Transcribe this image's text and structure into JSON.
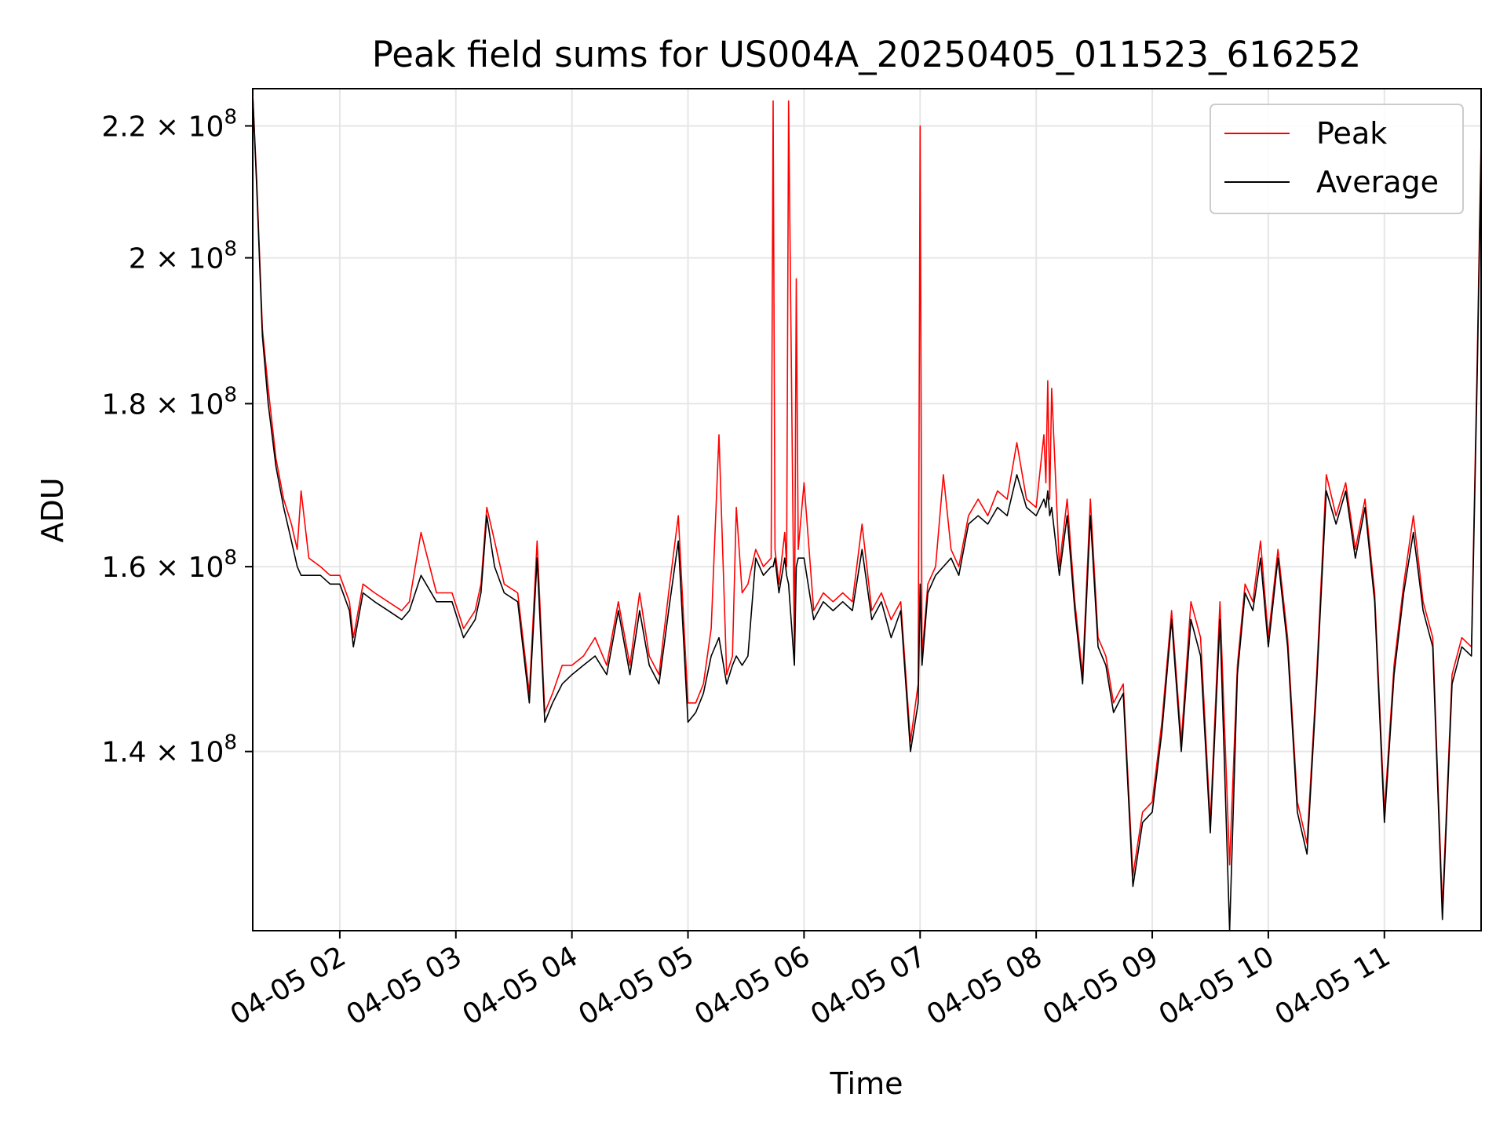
{
  "chart_data": {
    "type": "line",
    "title": "Peak field sums for US004A_20250405_011523_616252",
    "xlabel": "Time",
    "ylabel": "ADU",
    "x_range": [
      "2025-04-05 01:15",
      "2025-04-05 11:50"
    ],
    "y_range": [
      123000000,
      226000000
    ],
    "y_scale": "log",
    "grid": true,
    "legend_position": "top-right",
    "x_ticks": [
      {
        "value": "2025-04-05 02:00",
        "label": "04-05 02"
      },
      {
        "value": "2025-04-05 03:00",
        "label": "04-05 03"
      },
      {
        "value": "2025-04-05 04:00",
        "label": "04-05 04"
      },
      {
        "value": "2025-04-05 05:00",
        "label": "04-05 05"
      },
      {
        "value": "2025-04-05 06:00",
        "label": "04-05 06"
      },
      {
        "value": "2025-04-05 07:00",
        "label": "04-05 07"
      },
      {
        "value": "2025-04-05 08:00",
        "label": "04-05 08"
      },
      {
        "value": "2025-04-05 09:00",
        "label": "04-05 09"
      },
      {
        "value": "2025-04-05 10:00",
        "label": "04-05 10"
      },
      {
        "value": "2025-04-05 11:00",
        "label": "04-05 11"
      }
    ],
    "y_ticks": [
      {
        "value": 140000000,
        "mantissa": "1.4",
        "exponent": "8"
      },
      {
        "value": 160000000,
        "mantissa": "1.6",
        "exponent": "8"
      },
      {
        "value": 180000000,
        "mantissa": "1.8",
        "exponent": "8"
      },
      {
        "value": 200000000,
        "mantissa": "2",
        "exponent": "8"
      },
      {
        "value": 220000000,
        "mantissa": "2.2",
        "exponent": "8"
      }
    ],
    "series": [
      {
        "name": "Peak",
        "color": "#ff0000",
        "x": [
          "2025-04-05 01:15",
          "2025-04-05 01:17",
          "2025-04-05 01:20",
          "2025-04-05 01:23",
          "2025-04-05 01:27",
          "2025-04-05 01:31",
          "2025-04-05 01:35",
          "2025-04-05 01:38",
          "2025-04-05 01:40",
          "2025-04-05 01:44",
          "2025-04-05 01:50",
          "2025-04-05 01:55",
          "2025-04-05 02:00",
          "2025-04-05 02:05",
          "2025-04-05 02:07",
          "2025-04-05 02:12",
          "2025-04-05 02:18",
          "2025-04-05 02:25",
          "2025-04-05 02:32",
          "2025-04-05 02:36",
          "2025-04-05 02:42",
          "2025-04-05 02:50",
          "2025-04-05 02:58",
          "2025-04-05 03:04",
          "2025-04-05 03:10",
          "2025-04-05 03:13",
          "2025-04-05 03:16",
          "2025-04-05 03:20",
          "2025-04-05 03:25",
          "2025-04-05 03:32",
          "2025-04-05 03:38",
          "2025-04-05 03:42",
          "2025-04-05 03:46",
          "2025-04-05 03:50",
          "2025-04-05 03:55",
          "2025-04-05 04:00",
          "2025-04-05 04:06",
          "2025-04-05 04:12",
          "2025-04-05 04:18",
          "2025-04-05 04:24",
          "2025-04-05 04:30",
          "2025-04-05 04:35",
          "2025-04-05 04:40",
          "2025-04-05 04:45",
          "2025-04-05 04:50",
          "2025-04-05 04:55",
          "2025-04-05 05:00",
          "2025-04-05 05:04",
          "2025-04-05 05:08",
          "2025-04-05 05:12",
          "2025-04-05 05:16",
          "2025-04-05 05:20",
          "2025-04-05 05:23",
          "2025-04-05 05:25",
          "2025-04-05 05:28",
          "2025-04-05 05:31",
          "2025-04-05 05:35",
          "2025-04-05 05:39",
          "2025-04-05 05:43",
          "2025-04-05 05:44",
          "2025-04-05 05:45",
          "2025-04-05 05:47",
          "2025-04-05 05:50",
          "2025-04-05 05:51",
          "2025-04-05 05:52",
          "2025-04-05 05:55",
          "2025-04-05 05:56",
          "2025-04-05 05:57",
          "2025-04-05 06:00",
          "2025-04-05 06:05",
          "2025-04-05 06:10",
          "2025-04-05 06:15",
          "2025-04-05 06:20",
          "2025-04-05 06:25",
          "2025-04-05 06:30",
          "2025-04-05 06:35",
          "2025-04-05 06:40",
          "2025-04-05 06:45",
          "2025-04-05 06:50",
          "2025-04-05 06:55",
          "2025-04-05 06:59",
          "2025-04-05 07:00",
          "2025-04-05 07:01",
          "2025-04-05 07:04",
          "2025-04-05 07:08",
          "2025-04-05 07:12",
          "2025-04-05 07:16",
          "2025-04-05 07:20",
          "2025-04-05 07:25",
          "2025-04-05 07:30",
          "2025-04-05 07:35",
          "2025-04-05 07:40",
          "2025-04-05 07:45",
          "2025-04-05 07:50",
          "2025-04-05 07:55",
          "2025-04-05 08:00",
          "2025-04-05 08:04",
          "2025-04-05 08:05",
          "2025-04-05 08:06",
          "2025-04-05 08:07",
          "2025-04-05 08:08",
          "2025-04-05 08:12",
          "2025-04-05 08:16",
          "2025-04-05 08:20",
          "2025-04-05 08:24",
          "2025-04-05 08:28",
          "2025-04-05 08:32",
          "2025-04-05 08:36",
          "2025-04-05 08:40",
          "2025-04-05 08:45",
          "2025-04-05 08:50",
          "2025-04-05 08:55",
          "2025-04-05 09:00",
          "2025-04-05 09:05",
          "2025-04-05 09:10",
          "2025-04-05 09:15",
          "2025-04-05 09:20",
          "2025-04-05 09:25",
          "2025-04-05 09:30",
          "2025-04-05 09:35",
          "2025-04-05 09:40",
          "2025-04-05 09:44",
          "2025-04-05 09:48",
          "2025-04-05 09:52",
          "2025-04-05 09:56",
          "2025-04-05 10:00",
          "2025-04-05 10:05",
          "2025-04-05 10:10",
          "2025-04-05 10:15",
          "2025-04-05 10:20",
          "2025-04-05 10:25",
          "2025-04-05 10:30",
          "2025-04-05 10:35",
          "2025-04-05 10:40",
          "2025-04-05 10:45",
          "2025-04-05 10:50",
          "2025-04-05 10:55",
          "2025-04-05 11:00",
          "2025-04-05 11:05",
          "2025-04-05 11:10",
          "2025-04-05 11:15",
          "2025-04-05 11:20",
          "2025-04-05 11:25",
          "2025-04-05 11:30",
          "2025-04-05 11:35",
          "2025-04-05 11:40",
          "2025-04-05 11:45",
          "2025-04-05 11:48",
          "2025-04-05 11:50"
        ],
        "values": [
          225000000,
          212000000,
          190000000,
          182000000,
          173000000,
          168000000,
          165000000,
          162000000,
          169000000,
          161000000,
          160000000,
          159000000,
          159000000,
          156000000,
          152000000,
          158000000,
          157000000,
          156000000,
          155000000,
          156000000,
          164000000,
          157000000,
          157000000,
          153000000,
          155000000,
          158000000,
          167000000,
          163000000,
          158000000,
          157000000,
          146000000,
          163000000,
          144000000,
          146000000,
          149000000,
          149000000,
          150000000,
          152000000,
          149000000,
          156000000,
          149000000,
          157000000,
          150000000,
          148000000,
          157000000,
          166000000,
          145000000,
          145000000,
          147000000,
          153000000,
          176000000,
          148000000,
          150000000,
          167000000,
          157000000,
          158000000,
          162000000,
          160000000,
          161000000,
          224000000,
          162000000,
          158000000,
          164000000,
          160000000,
          224000000,
          150000000,
          197000000,
          162000000,
          170000000,
          155000000,
          157000000,
          156000000,
          157000000,
          156000000,
          165000000,
          155000000,
          157000000,
          154000000,
          156000000,
          141000000,
          147000000,
          220000000,
          150000000,
          158000000,
          160000000,
          171000000,
          162000000,
          160000000,
          166000000,
          168000000,
          166000000,
          169000000,
          168000000,
          175000000,
          168000000,
          167000000,
          176000000,
          170000000,
          183000000,
          168000000,
          182000000,
          160000000,
          168000000,
          156000000,
          148000000,
          168000000,
          152000000,
          150000000,
          145000000,
          147000000,
          128000000,
          134000000,
          135000000,
          143000000,
          155000000,
          141000000,
          156000000,
          152000000,
          133000000,
          156000000,
          129000000,
          149000000,
          158000000,
          156000000,
          163000000,
          152000000,
          162000000,
          152000000,
          135000000,
          131000000,
          148000000,
          171000000,
          166000000,
          170000000,
          162000000,
          168000000,
          157000000,
          134000000,
          149000000,
          158000000,
          166000000,
          156000000,
          152000000,
          125000000,
          148000000,
          152000000,
          151000000,
          186000000,
          218000000
        ]
      },
      {
        "name": "Average",
        "color": "#000000",
        "x": [
          "2025-04-05 01:15",
          "2025-04-05 01:17",
          "2025-04-05 01:20",
          "2025-04-05 01:23",
          "2025-04-05 01:27",
          "2025-04-05 01:31",
          "2025-04-05 01:35",
          "2025-04-05 01:38",
          "2025-04-05 01:40",
          "2025-04-05 01:44",
          "2025-04-05 01:50",
          "2025-04-05 01:55",
          "2025-04-05 02:00",
          "2025-04-05 02:05",
          "2025-04-05 02:07",
          "2025-04-05 02:12",
          "2025-04-05 02:18",
          "2025-04-05 02:25",
          "2025-04-05 02:32",
          "2025-04-05 02:36",
          "2025-04-05 02:42",
          "2025-04-05 02:50",
          "2025-04-05 02:58",
          "2025-04-05 03:04",
          "2025-04-05 03:10",
          "2025-04-05 03:13",
          "2025-04-05 03:16",
          "2025-04-05 03:20",
          "2025-04-05 03:25",
          "2025-04-05 03:32",
          "2025-04-05 03:38",
          "2025-04-05 03:42",
          "2025-04-05 03:46",
          "2025-04-05 03:50",
          "2025-04-05 03:55",
          "2025-04-05 04:00",
          "2025-04-05 04:06",
          "2025-04-05 04:12",
          "2025-04-05 04:18",
          "2025-04-05 04:24",
          "2025-04-05 04:30",
          "2025-04-05 04:35",
          "2025-04-05 04:40",
          "2025-04-05 04:45",
          "2025-04-05 04:50",
          "2025-04-05 04:55",
          "2025-04-05 05:00",
          "2025-04-05 05:04",
          "2025-04-05 05:08",
          "2025-04-05 05:12",
          "2025-04-05 05:16",
          "2025-04-05 05:20",
          "2025-04-05 05:23",
          "2025-04-05 05:25",
          "2025-04-05 05:28",
          "2025-04-05 05:31",
          "2025-04-05 05:35",
          "2025-04-05 05:39",
          "2025-04-05 05:43",
          "2025-04-05 05:44",
          "2025-04-05 05:45",
          "2025-04-05 05:47",
          "2025-04-05 05:50",
          "2025-04-05 05:51",
          "2025-04-05 05:52",
          "2025-04-05 05:55",
          "2025-04-05 05:56",
          "2025-04-05 05:57",
          "2025-04-05 06:00",
          "2025-04-05 06:05",
          "2025-04-05 06:10",
          "2025-04-05 06:15",
          "2025-04-05 06:20",
          "2025-04-05 06:25",
          "2025-04-05 06:30",
          "2025-04-05 06:35",
          "2025-04-05 06:40",
          "2025-04-05 06:45",
          "2025-04-05 06:50",
          "2025-04-05 06:55",
          "2025-04-05 06:59",
          "2025-04-05 07:00",
          "2025-04-05 07:01",
          "2025-04-05 07:04",
          "2025-04-05 07:08",
          "2025-04-05 07:12",
          "2025-04-05 07:16",
          "2025-04-05 07:20",
          "2025-04-05 07:25",
          "2025-04-05 07:30",
          "2025-04-05 07:35",
          "2025-04-05 07:40",
          "2025-04-05 07:45",
          "2025-04-05 07:50",
          "2025-04-05 07:55",
          "2025-04-05 08:00",
          "2025-04-05 08:04",
          "2025-04-05 08:05",
          "2025-04-05 08:06",
          "2025-04-05 08:07",
          "2025-04-05 08:08",
          "2025-04-05 08:12",
          "2025-04-05 08:16",
          "2025-04-05 08:20",
          "2025-04-05 08:24",
          "2025-04-05 08:28",
          "2025-04-05 08:32",
          "2025-04-05 08:36",
          "2025-04-05 08:40",
          "2025-04-05 08:45",
          "2025-04-05 08:50",
          "2025-04-05 08:55",
          "2025-04-05 09:00",
          "2025-04-05 09:05",
          "2025-04-05 09:10",
          "2025-04-05 09:15",
          "2025-04-05 09:20",
          "2025-04-05 09:25",
          "2025-04-05 09:30",
          "2025-04-05 09:35",
          "2025-04-05 09:40",
          "2025-04-05 09:44",
          "2025-04-05 09:48",
          "2025-04-05 09:52",
          "2025-04-05 09:56",
          "2025-04-05 10:00",
          "2025-04-05 10:05",
          "2025-04-05 10:10",
          "2025-04-05 10:15",
          "2025-04-05 10:20",
          "2025-04-05 10:25",
          "2025-04-05 10:30",
          "2025-04-05 10:35",
          "2025-04-05 10:40",
          "2025-04-05 10:45",
          "2025-04-05 10:50",
          "2025-04-05 10:55",
          "2025-04-05 11:00",
          "2025-04-05 11:05",
          "2025-04-05 11:10",
          "2025-04-05 11:15",
          "2025-04-05 11:20",
          "2025-04-05 11:25",
          "2025-04-05 11:30",
          "2025-04-05 11:35",
          "2025-04-05 11:40",
          "2025-04-05 11:45",
          "2025-04-05 11:48",
          "2025-04-05 11:50"
        ],
        "values": [
          225000000,
          211000000,
          189000000,
          180000000,
          172000000,
          167000000,
          163000000,
          160000000,
          159000000,
          159000000,
          159000000,
          158000000,
          158000000,
          155000000,
          151000000,
          157000000,
          156000000,
          155000000,
          154000000,
          155000000,
          159000000,
          156000000,
          156000000,
          152000000,
          154000000,
          157000000,
          166000000,
          160000000,
          157000000,
          156000000,
          145000000,
          161000000,
          143000000,
          145000000,
          147000000,
          148000000,
          149000000,
          150000000,
          148000000,
          155000000,
          148000000,
          155000000,
          149000000,
          147000000,
          155000000,
          163000000,
          143000000,
          144000000,
          146000000,
          150000000,
          152000000,
          147000000,
          149000000,
          150000000,
          149000000,
          150000000,
          161000000,
          159000000,
          160000000,
          160000000,
          161000000,
          157000000,
          161000000,
          159000000,
          158000000,
          149000000,
          160000000,
          161000000,
          161000000,
          154000000,
          156000000,
          155000000,
          156000000,
          155000000,
          162000000,
          154000000,
          156000000,
          152000000,
          155000000,
          140000000,
          145000000,
          158000000,
          149000000,
          157000000,
          159000000,
          160000000,
          161000000,
          159000000,
          165000000,
          166000000,
          165000000,
          167000000,
          166000000,
          171000000,
          167000000,
          166000000,
          168000000,
          167000000,
          169000000,
          166000000,
          167000000,
          159000000,
          166000000,
          155000000,
          147000000,
          166000000,
          151000000,
          149000000,
          144000000,
          146000000,
          127000000,
          133000000,
          134000000,
          142000000,
          154000000,
          140000000,
          154000000,
          150000000,
          132000000,
          154000000,
          123000000,
          148000000,
          157000000,
          155000000,
          161000000,
          151000000,
          161000000,
          151000000,
          134000000,
          130000000,
          147000000,
          169000000,
          165000000,
          169000000,
          161000000,
          167000000,
          156000000,
          133000000,
          148000000,
          157000000,
          164000000,
          155000000,
          151000000,
          124000000,
          147000000,
          151000000,
          150000000,
          184000000,
          216000000
        ]
      }
    ]
  }
}
